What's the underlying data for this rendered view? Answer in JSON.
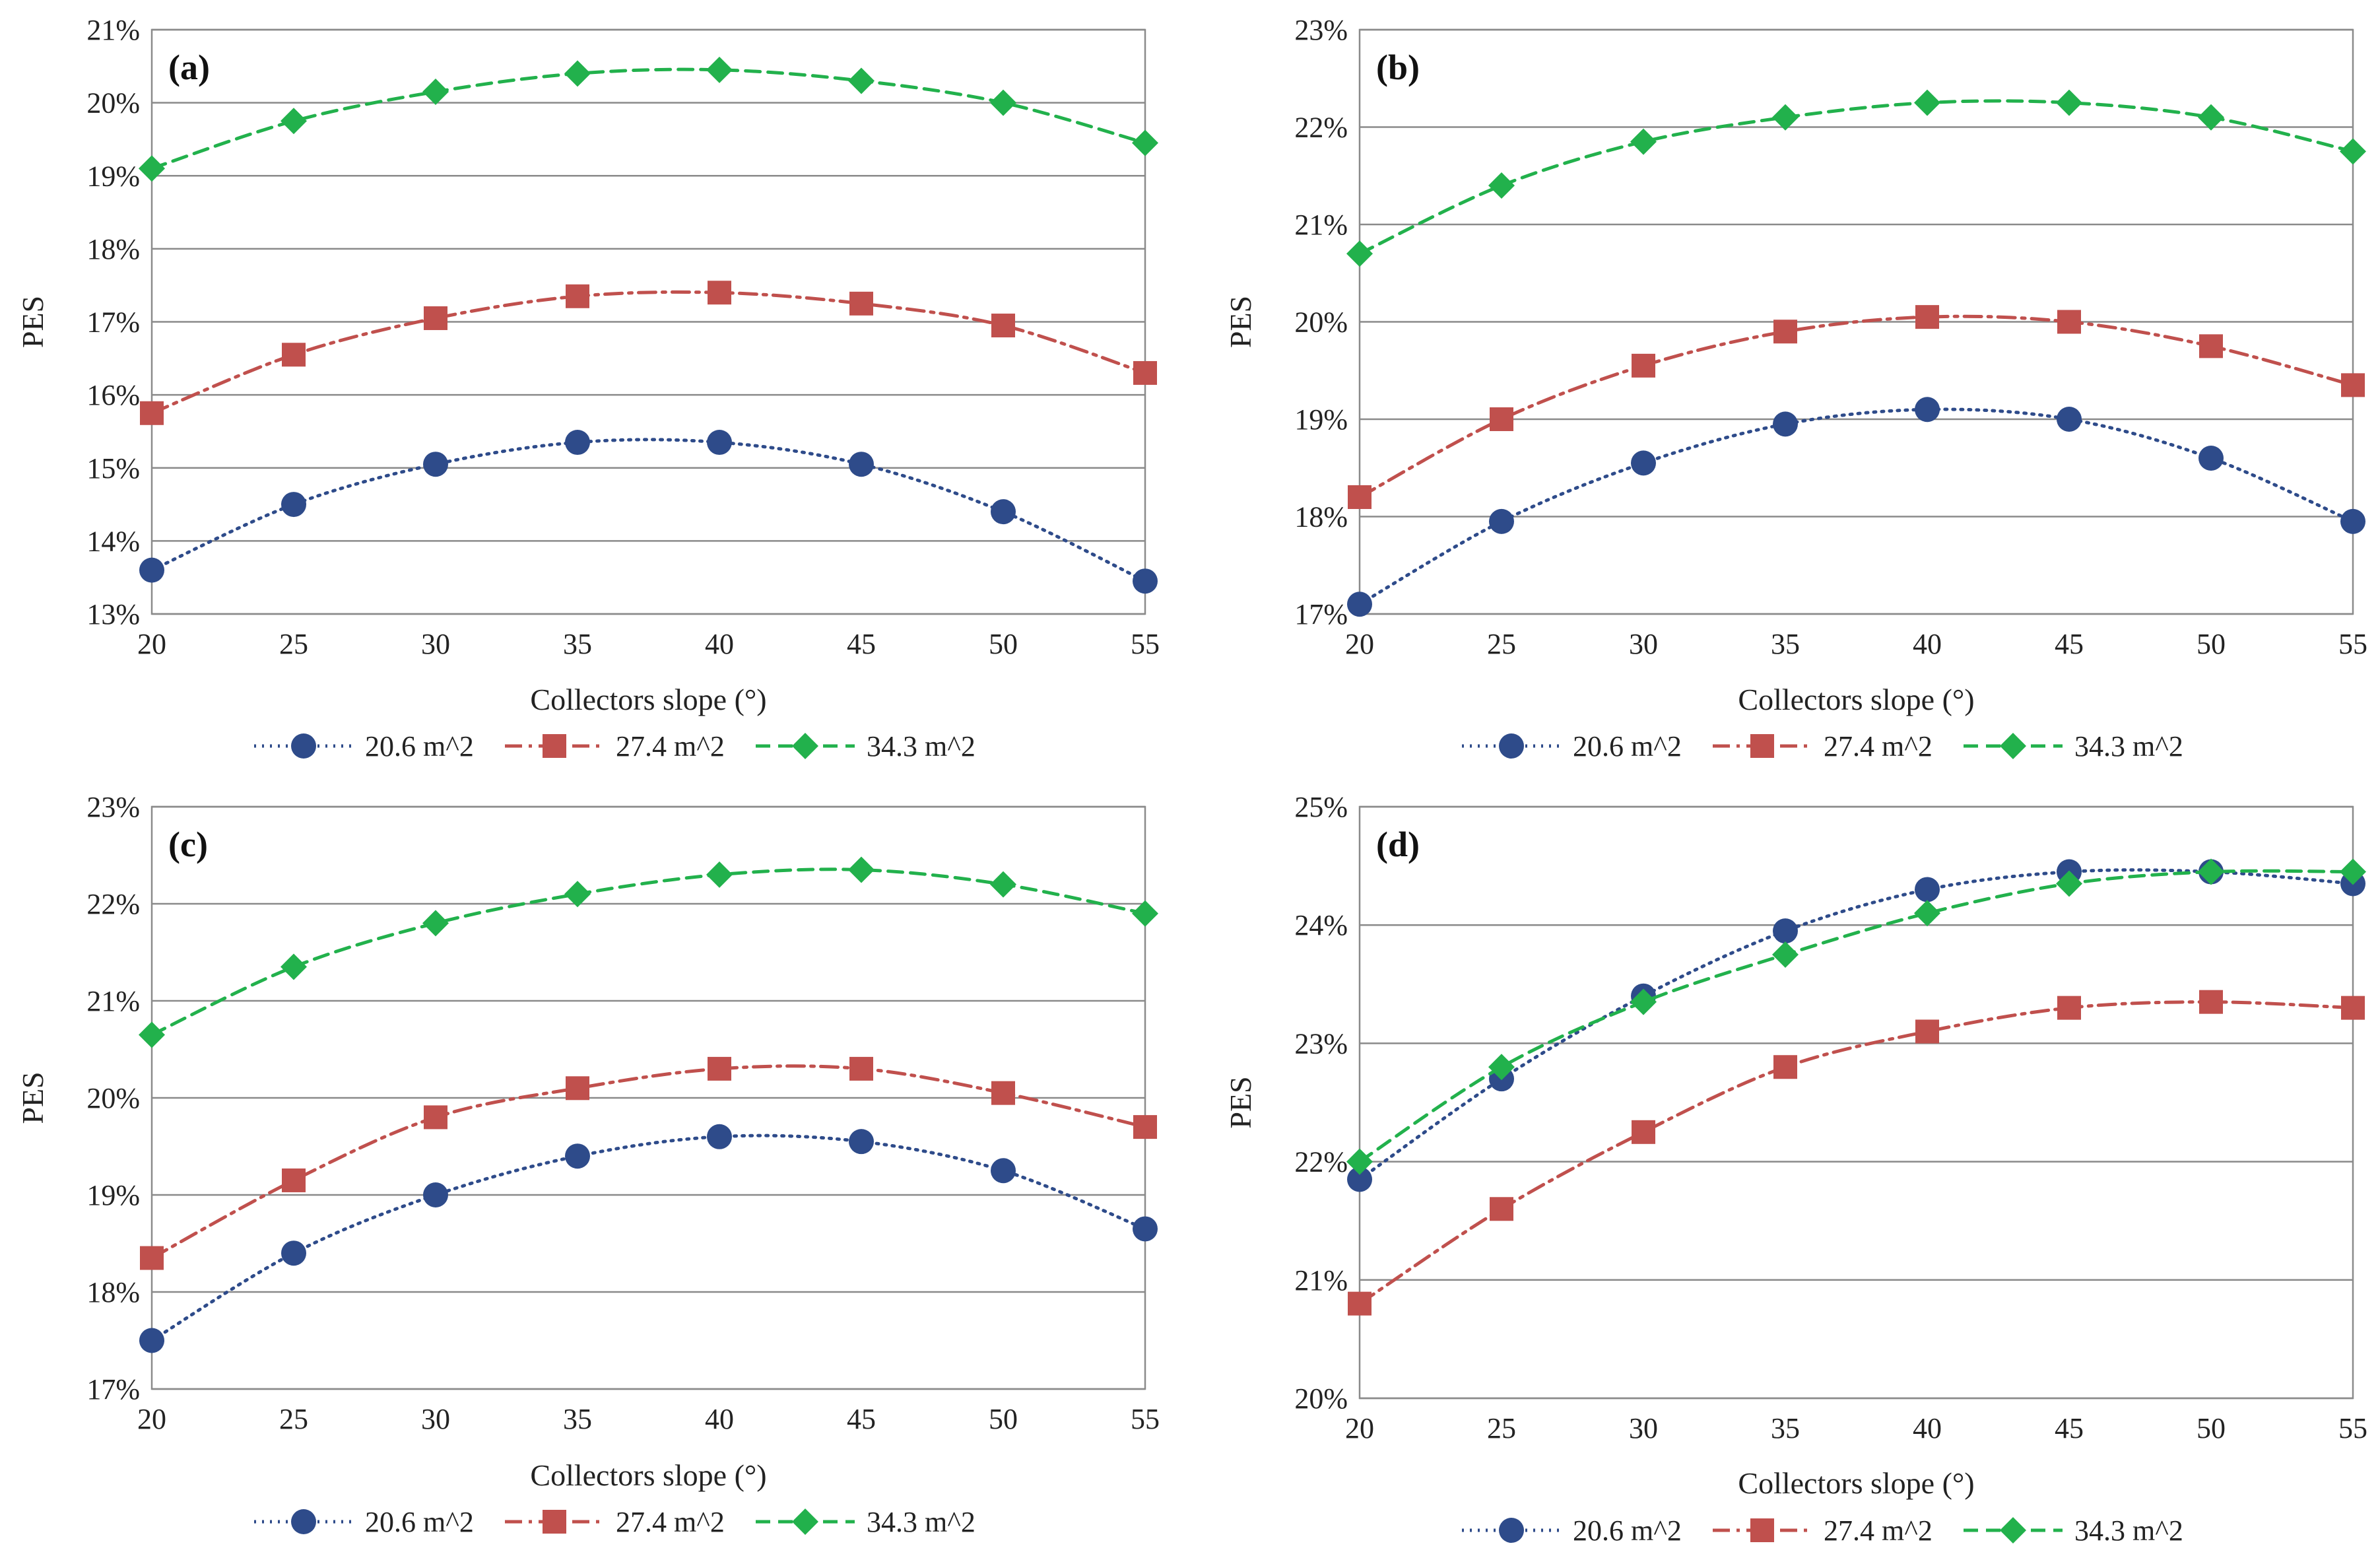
{
  "chart_data": [
    {
      "type": "line",
      "panel": "(a)",
      "xlabel": "Collectors slope (°)",
      "ylabel": "PES",
      "x": [
        20,
        25,
        30,
        35,
        40,
        45,
        50,
        55
      ],
      "xlim": [
        20,
        55
      ],
      "ylim": [
        13,
        21
      ],
      "y_ticks": [
        "13%",
        "14%",
        "15%",
        "16%",
        "17%",
        "18%",
        "19%",
        "20%",
        "21%"
      ],
      "x_ticks": [
        "20",
        "25",
        "30",
        "35",
        "40",
        "45",
        "50",
        "55"
      ],
      "series": [
        {
          "name": "20.6 m^2",
          "values": [
            13.6,
            14.5,
            15.05,
            15.35,
            15.35,
            15.05,
            14.4,
            13.45
          ]
        },
        {
          "name": "27.4 m^2",
          "values": [
            15.75,
            16.55,
            17.05,
            17.35,
            17.4,
            17.25,
            16.95,
            16.3
          ]
        },
        {
          "name": "34.3 m^2",
          "values": [
            19.1,
            19.75,
            20.15,
            20.4,
            20.45,
            20.3,
            20.0,
            19.45
          ]
        }
      ]
    },
    {
      "type": "line",
      "panel": "(b)",
      "xlabel": "Collectors slope (°)",
      "ylabel": "PES",
      "x": [
        20,
        25,
        30,
        35,
        40,
        45,
        50,
        55
      ],
      "xlim": [
        20,
        55
      ],
      "ylim": [
        17,
        23
      ],
      "y_ticks": [
        "17%",
        "18%",
        "19%",
        "20%",
        "21%",
        "22%",
        "23%"
      ],
      "x_ticks": [
        "20",
        "25",
        "30",
        "35",
        "40",
        "45",
        "50",
        "55"
      ],
      "series": [
        {
          "name": "20.6 m^2",
          "values": [
            17.1,
            17.95,
            18.55,
            18.95,
            19.1,
            19.0,
            18.6,
            17.95
          ]
        },
        {
          "name": "27.4 m^2",
          "values": [
            18.2,
            19.0,
            19.55,
            19.9,
            20.05,
            20.0,
            19.75,
            19.35
          ]
        },
        {
          "name": "34.3 m^2",
          "values": [
            20.7,
            21.4,
            21.85,
            22.1,
            22.25,
            22.25,
            22.1,
            21.75
          ]
        }
      ]
    },
    {
      "type": "line",
      "panel": "(c)",
      "xlabel": "Collectors slope (°)",
      "ylabel": "PES",
      "x": [
        20,
        25,
        30,
        35,
        40,
        45,
        50,
        55
      ],
      "xlim": [
        20,
        55
      ],
      "ylim": [
        17,
        23
      ],
      "y_ticks": [
        "17%",
        "18%",
        "19%",
        "20%",
        "21%",
        "22%",
        "23%"
      ],
      "x_ticks": [
        "20",
        "25",
        "30",
        "35",
        "40",
        "45",
        "50",
        "55"
      ],
      "series": [
        {
          "name": "20.6 m^2",
          "values": [
            17.5,
            18.4,
            19.0,
            19.4,
            19.6,
            19.55,
            19.25,
            18.65
          ]
        },
        {
          "name": "27.4 m^2",
          "values": [
            18.35,
            19.15,
            19.8,
            20.1,
            20.3,
            20.3,
            20.05,
            19.7
          ]
        },
        {
          "name": "34.3 m^2",
          "values": [
            20.65,
            21.35,
            21.8,
            22.1,
            22.3,
            22.35,
            22.2,
            21.9
          ]
        }
      ]
    },
    {
      "type": "line",
      "panel": "(d)",
      "xlabel": "Collectors slope (°)",
      "ylabel": "PES",
      "x": [
        20,
        25,
        30,
        35,
        40,
        45,
        50,
        55
      ],
      "xlim": [
        20,
        55
      ],
      "ylim": [
        20,
        25
      ],
      "y_ticks": [
        "20%",
        "21%",
        "22%",
        "23%",
        "24%",
        "25%"
      ],
      "x_ticks": [
        "20",
        "25",
        "30",
        "35",
        "40",
        "45",
        "50",
        "55"
      ],
      "series": [
        {
          "name": "20.6 m^2",
          "values": [
            21.85,
            22.7,
            23.4,
            23.95,
            24.3,
            24.45,
            24.45,
            24.35
          ]
        },
        {
          "name": "27.4 m^2",
          "values": [
            20.8,
            21.6,
            22.25,
            22.8,
            23.1,
            23.3,
            23.35,
            23.3
          ]
        },
        {
          "name": "34.3 m^2",
          "values": [
            22.0,
            22.8,
            23.35,
            23.75,
            24.1,
            24.35,
            24.45,
            24.45
          ]
        }
      ]
    }
  ],
  "styles": {
    "series_colors": [
      "#2e4b8a",
      "#c0504d",
      "#22b14c"
    ],
    "series_markers": [
      "circle",
      "square",
      "diamond"
    ],
    "series_dash": [
      "dotted",
      "dash-dot",
      "dashed"
    ],
    "grid_color": "#8a8a8a"
  }
}
